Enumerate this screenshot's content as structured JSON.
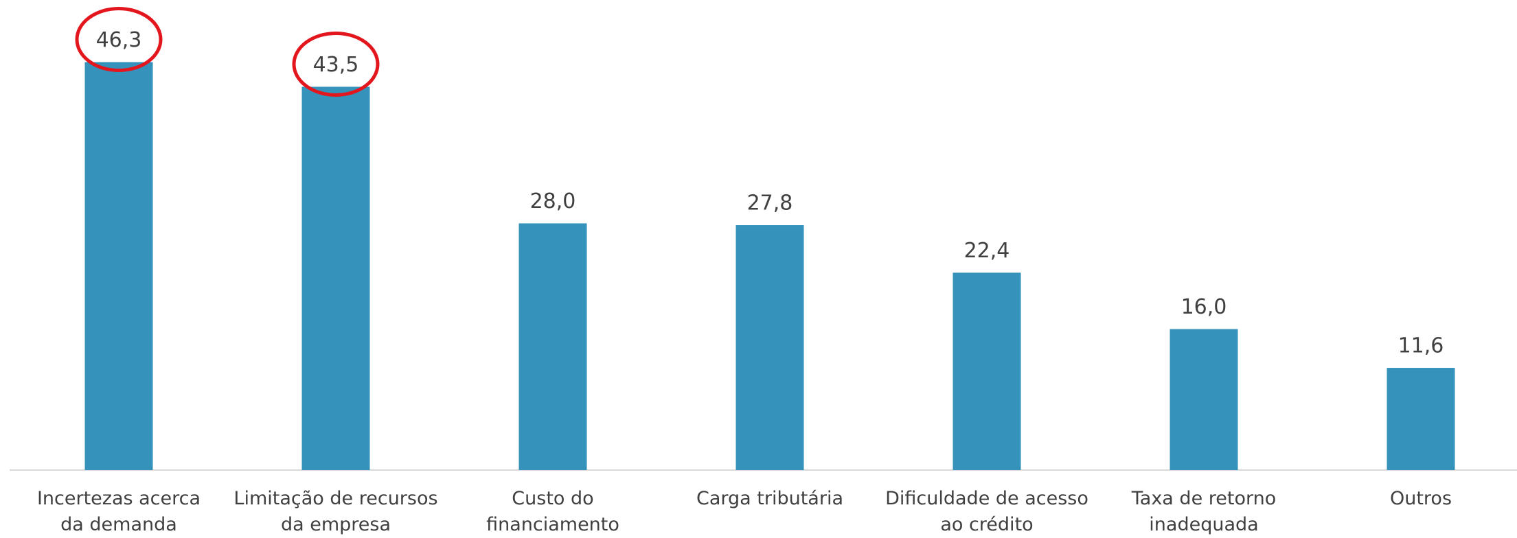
{
  "chart_data": {
    "type": "bar",
    "categories": [
      "Incertezas acerca\nda demanda",
      "Limitação de recursos\nda empresa",
      "Custo do\nfinanciamento",
      "Carga tributária",
      "Dificuldade de acesso\nao crédito",
      "Taxa de retorno\ninadequada",
      "Outros"
    ],
    "values": [
      46.3,
      43.5,
      28.0,
      27.8,
      22.4,
      16.0,
      11.6
    ],
    "value_labels": [
      "46,3",
      "43,5",
      "28,0",
      "27,8",
      "22,4",
      "16,0",
      "11,6"
    ],
    "color": "#3592bb",
    "ylim": [
      0,
      50
    ]
  }
}
